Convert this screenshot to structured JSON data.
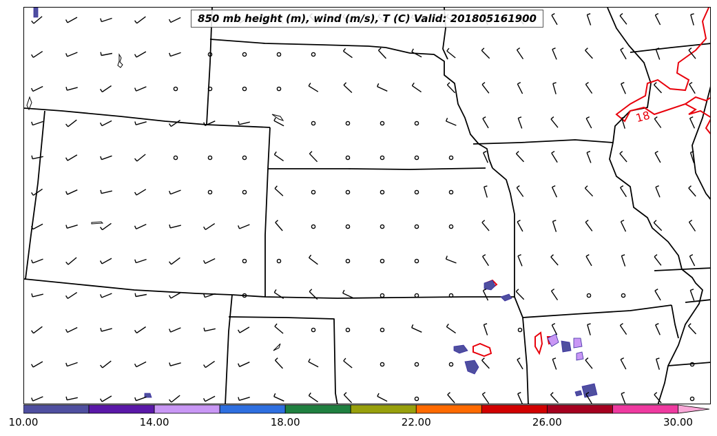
{
  "title": "850 mb height (m), wind (m/s), T (C) Valid: 201805161900",
  "contour_label": "18",
  "colors": {
    "contour": "#e8000b",
    "border": "#000000",
    "bar_fill": "#5a5ab4"
  },
  "colorbar": {
    "ticks": [
      "10.00",
      "14.00",
      "18.00",
      "22.00",
      "26.00",
      "30.00"
    ],
    "tick_values": [
      10,
      14,
      18,
      22,
      26,
      30
    ],
    "range": [
      10,
      31
    ],
    "bins": [
      {
        "from": 10,
        "to": 12,
        "color": "#4f4fa0"
      },
      {
        "from": 12,
        "to": 14,
        "color": "#5a18a8"
      },
      {
        "from": 14,
        "to": 16,
        "color": "#c997f5"
      },
      {
        "from": 16,
        "to": 18,
        "color": "#2e6fe0"
      },
      {
        "from": 18,
        "to": 20,
        "color": "#1f8040"
      },
      {
        "from": 20,
        "to": 22,
        "color": "#98a00c"
      },
      {
        "from": 22,
        "to": 24,
        "color": "#ff6a00"
      },
      {
        "from": 24,
        "to": 26,
        "color": "#d10000"
      },
      {
        "from": 26,
        "to": 28,
        "color": "#a5001f"
      },
      {
        "from": 28,
        "to": 30,
        "color": "#ef3aa0"
      },
      {
        "from": 30,
        "to": 31,
        "color": "#f9a8d8"
      }
    ]
  }
}
